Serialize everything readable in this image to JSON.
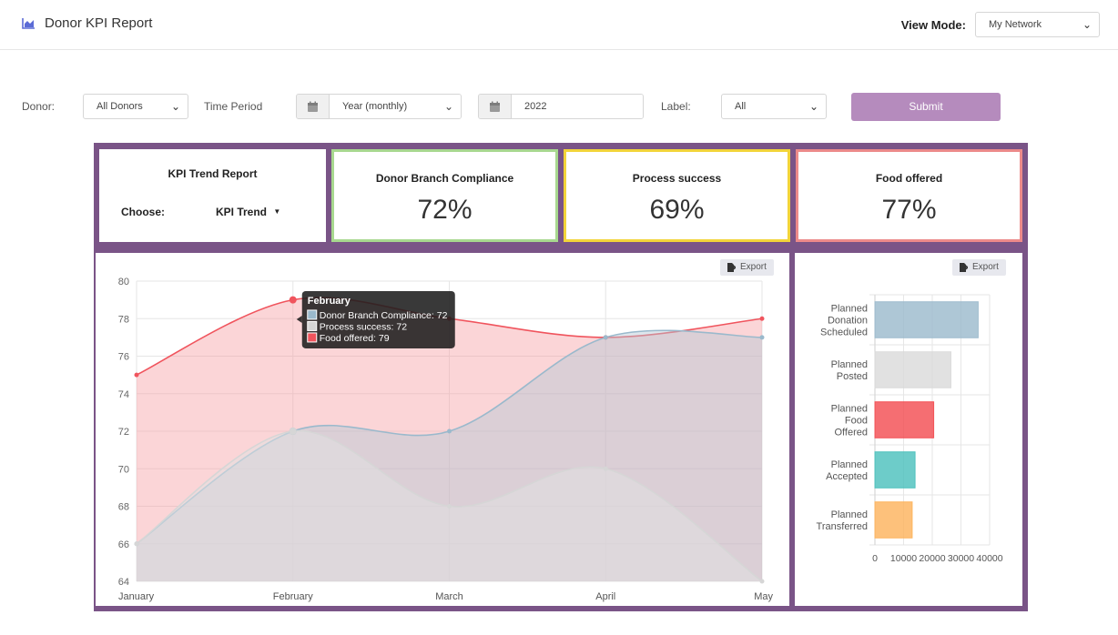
{
  "header": {
    "title": "Donor KPI Report",
    "view_mode_label": "View Mode:",
    "view_mode_value": "My Network"
  },
  "filters": {
    "donor_label": "Donor:",
    "donor_value": "All Donors",
    "time_period_label": "Time Period",
    "time_period_value": "Year (monthly)",
    "year_value": "2022",
    "label_label": "Label:",
    "label_value": "All",
    "submit_label": "Submit"
  },
  "trend_card": {
    "title": "KPI Trend Report",
    "choose_label": "Choose:",
    "dropdown_value": "KPI Trend"
  },
  "kpis": [
    {
      "title": "Donor Branch Compliance",
      "value": "72%",
      "border_color": "#a8d88f"
    },
    {
      "title": "Process success",
      "value": "69%",
      "border_color": "#f2d43a"
    },
    {
      "title": "Food offered",
      "value": "77%",
      "border_color": "#ec8a8a"
    }
  ],
  "export_label": "Export",
  "tooltip": {
    "title": "February",
    "lines": [
      "Donor Branch Compliance: 72",
      "Process success: 72",
      "Food offered: 79"
    ]
  },
  "colors": {
    "frame": "#7a5487",
    "submit": "#b58bbd",
    "compliance": "#9ab9cc",
    "process": "#d6d6d6",
    "food": "#f0545d"
  },
  "chart_data": [
    {
      "type": "area",
      "categories": [
        "January",
        "February",
        "March",
        "April",
        "May"
      ],
      "ylim": [
        64,
        80
      ],
      "yticks": [
        64,
        66,
        68,
        70,
        72,
        74,
        76,
        78,
        80
      ],
      "grid": true,
      "series": [
        {
          "name": "Donor Branch Compliance",
          "color": "#9ab9cc",
          "values": [
            66,
            72,
            72,
            77,
            77
          ]
        },
        {
          "name": "Process success",
          "color": "#d6d6d6",
          "values": [
            66,
            72,
            68,
            70,
            64
          ]
        },
        {
          "name": "Food offered",
          "color": "#f0545d",
          "values": [
            75,
            79,
            78,
            77,
            78
          ]
        }
      ]
    },
    {
      "type": "bar",
      "orientation": "horizontal",
      "categories": [
        [
          "Planned",
          "Donation",
          "Scheduled"
        ],
        [
          "Planned",
          "Posted"
        ],
        [
          "Planned",
          "Food",
          "Offered"
        ],
        [
          "Planned",
          "Accepted"
        ],
        [
          "Planned",
          "Transferred"
        ]
      ],
      "values": [
        36000,
        26500,
        20500,
        14000,
        13000
      ],
      "colors": [
        "#9ab9cc",
        "#d9d9d9",
        "#f34a4f",
        "#48bfbb",
        "#fdb25a"
      ],
      "xlim": [
        0,
        40000
      ],
      "xticks": [
        "0",
        "10000",
        "20000",
        "30000",
        "40000"
      ],
      "grid": true
    }
  ]
}
